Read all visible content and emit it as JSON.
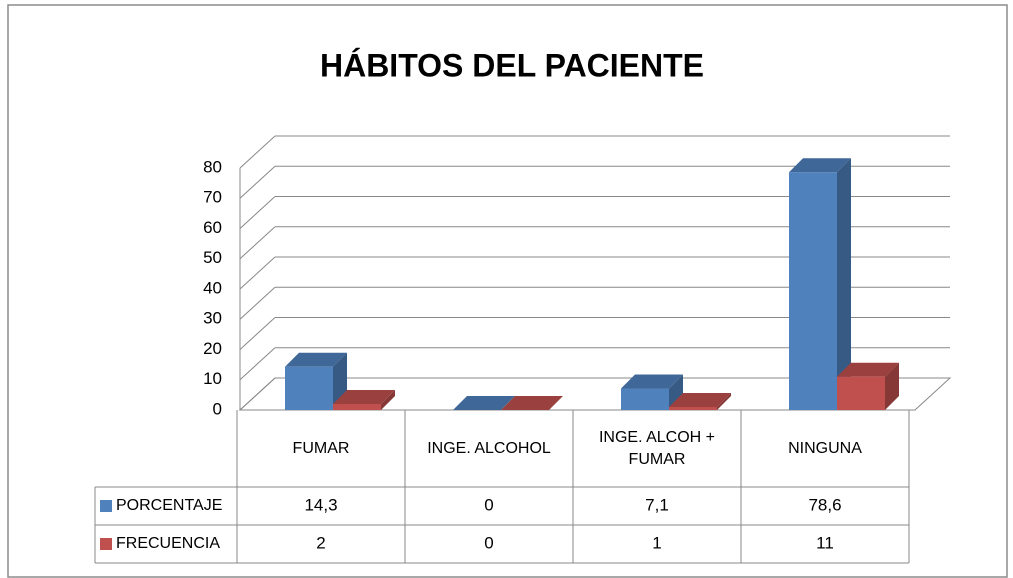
{
  "chart_data": {
    "type": "bar3d",
    "title": "HÁBITOS DEL PACIENTE",
    "categories": [
      "FUMAR",
      "INGE. ALCOHOL",
      "INGE. ALCOH + FUMAR",
      "NINGUNA"
    ],
    "series": [
      {
        "name": "PORCENTAJE",
        "color": "#4f81bd",
        "values": [
          14.3,
          0,
          7.1,
          78.6
        ],
        "value_labels": [
          "14,3",
          "0",
          "7,1",
          "78,6"
        ]
      },
      {
        "name": "FRECUENCIA",
        "color": "#c0504d",
        "values": [
          2,
          0,
          1,
          11
        ]
      }
    ],
    "ylim": [
      0,
      80
    ],
    "yticks": [
      0,
      10,
      20,
      30,
      40,
      50,
      60,
      70,
      80
    ],
    "grid": true
  }
}
